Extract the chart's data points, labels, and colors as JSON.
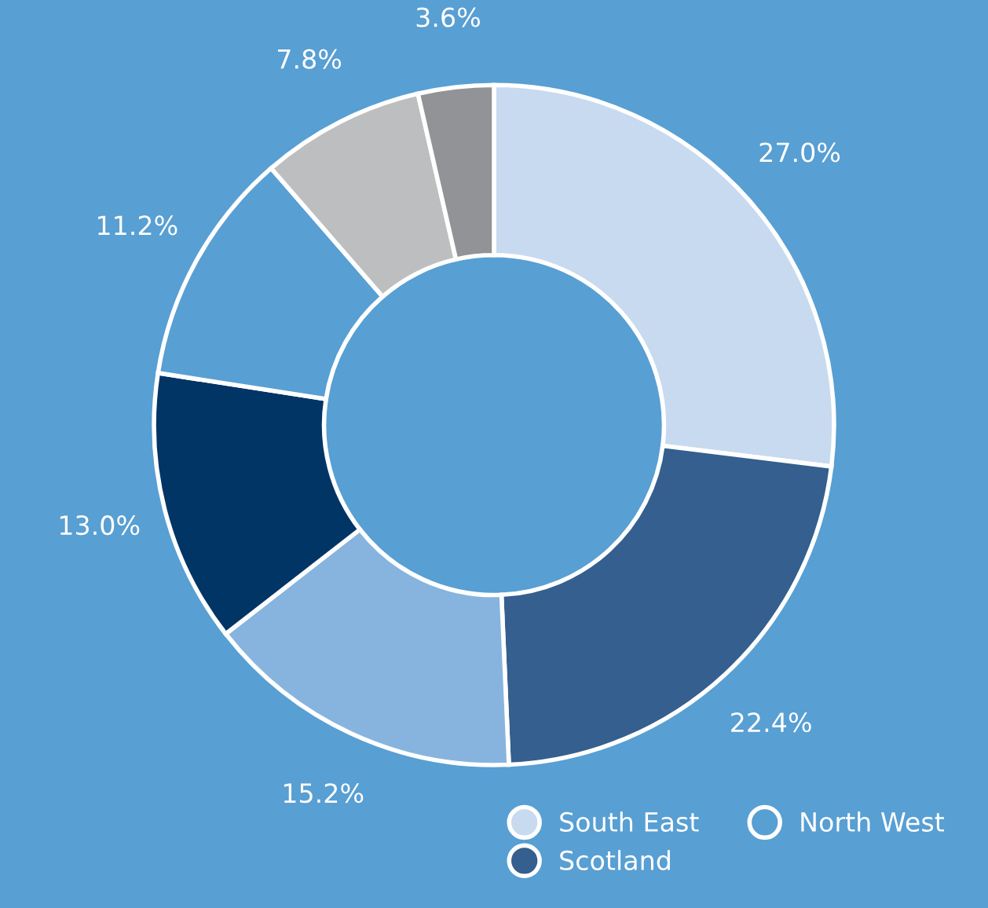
{
  "chart_data": {
    "type": "donut",
    "categories": [
      "South East",
      "Scotland",
      null,
      null,
      "North West",
      null,
      null
    ],
    "values": [
      27.0,
      22.4,
      15.2,
      13.0,
      11.2,
      7.8,
      3.6
    ],
    "colors": [
      "#c8daef",
      "#345f8e",
      "#86b4de",
      "#003566",
      "#589fd3",
      "#bdbec0",
      "#929397"
    ],
    "value_labels": [
      "27.0%",
      "22.4%",
      "15.2%",
      "13.0%",
      "11.2%",
      "7.8%",
      "3.6%"
    ],
    "legend": "bottom right"
  }
}
